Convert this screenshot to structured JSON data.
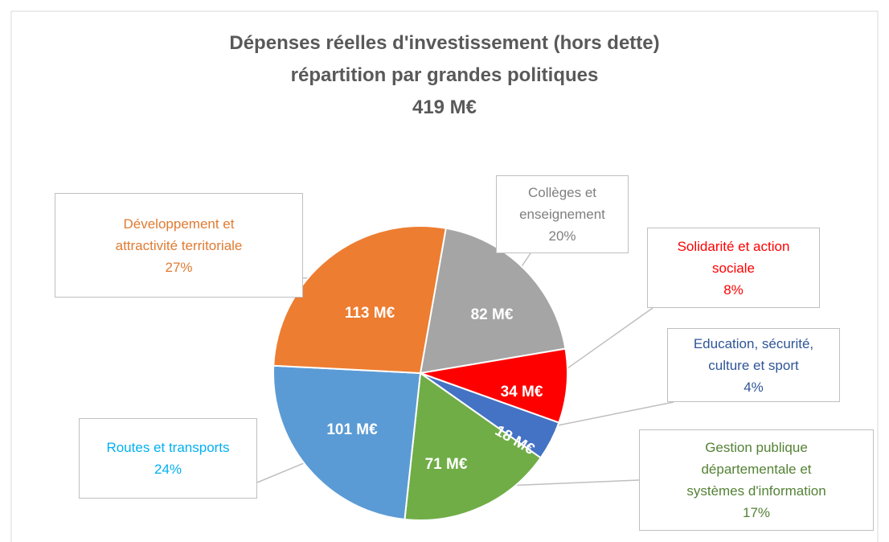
{
  "chart_data": {
    "type": "pie",
    "title": "Dépenses réelles d'investissement (hors dette)\nrépartition par grandes politiques\n419 M€",
    "categories": [
      "Collèges et\nenseignement",
      "Solidarité et action\nsociale",
      "Education, sécurité,\nculture et sport",
      "Gestion publique\ndépartementale et\nsystèmes d'information",
      "Routes et transports",
      "Développement et\nattractivité territoriale"
    ],
    "values": [
      82,
      34,
      18,
      71,
      101,
      113
    ],
    "value_labels": [
      "82 M€",
      "34 M€",
      "18 M€",
      "71 M€",
      "101 M€",
      "113 M€"
    ],
    "percent_labels": [
      "20%",
      "8%",
      "4%",
      "17%",
      "24%",
      "27%"
    ],
    "colors": [
      "#a5a5a5",
      "#ff0000",
      "#4472c4",
      "#70ad47",
      "#5b9bd5",
      "#ed7d31"
    ],
    "label_colors": [
      "#7f7f7f",
      "#ff0000",
      "#2f5597",
      "#548235",
      "#00b0f0",
      "#e07b32"
    ]
  }
}
